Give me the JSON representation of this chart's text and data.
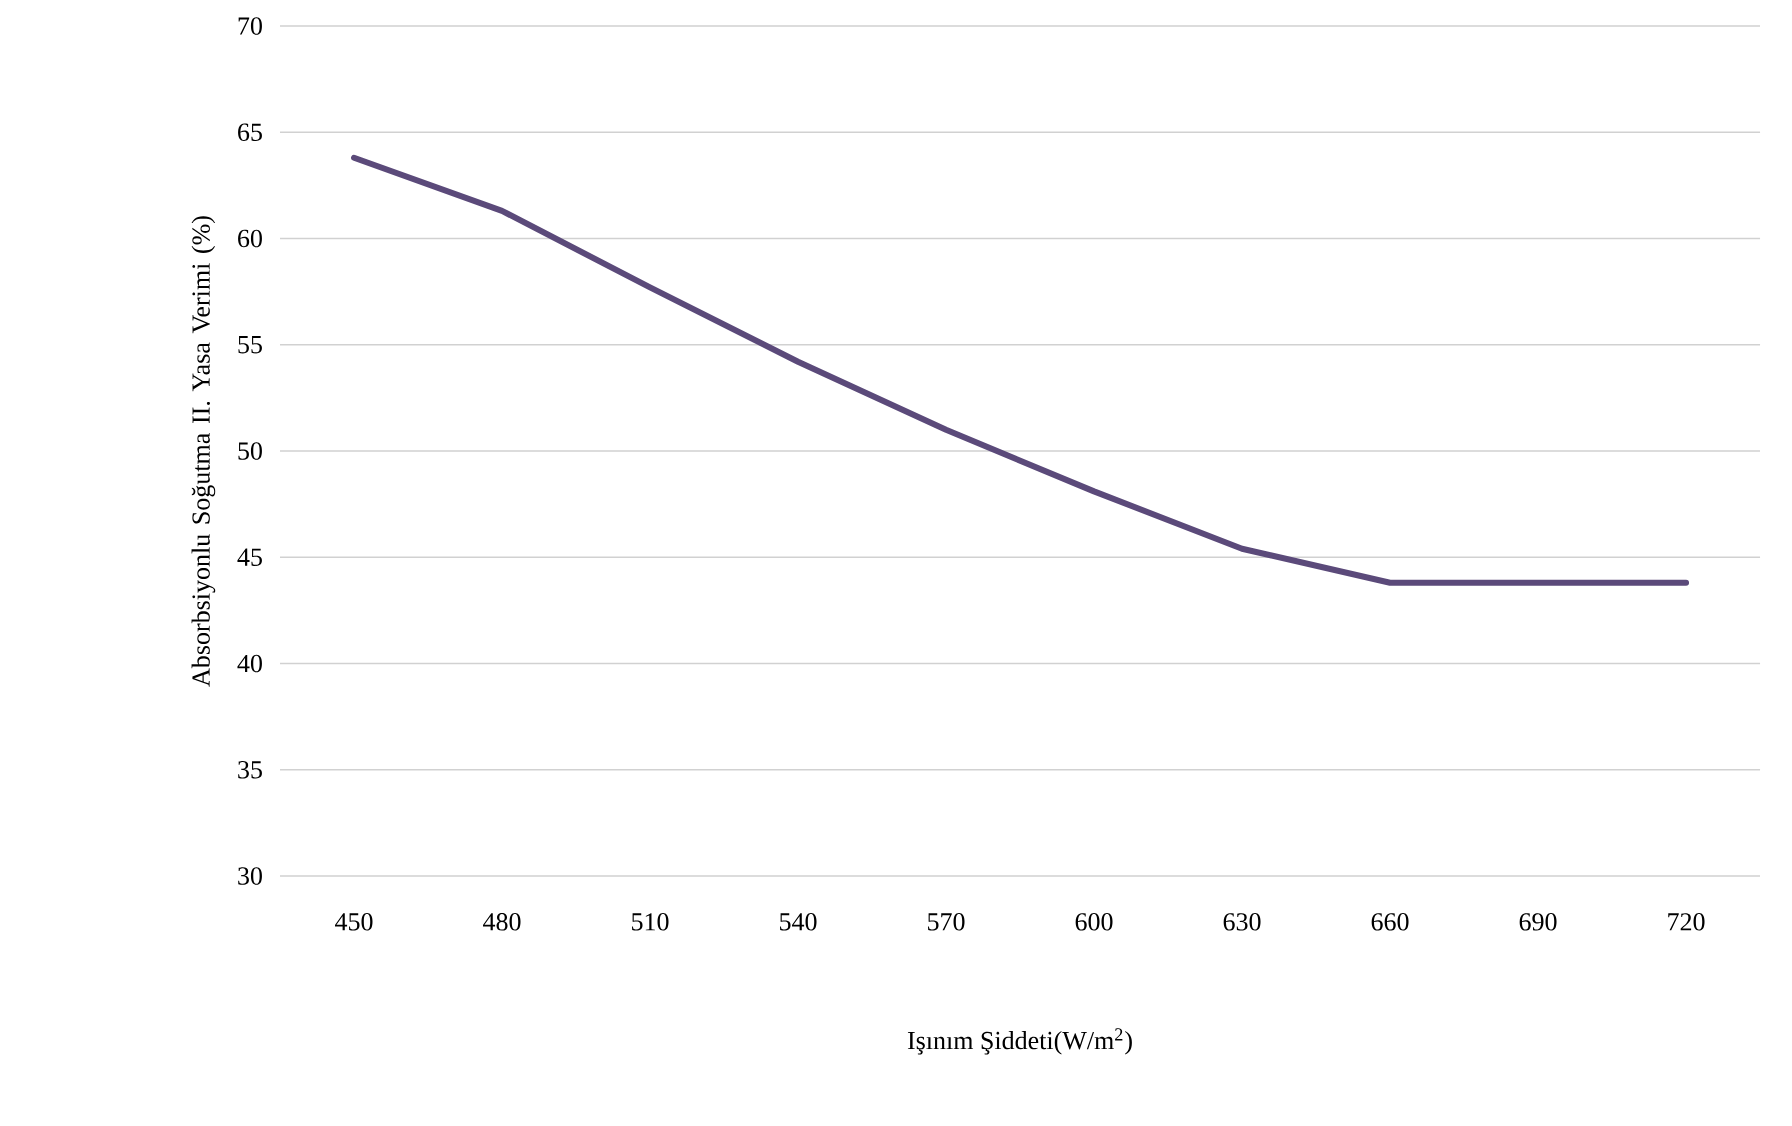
{
  "chart_data": {
    "type": "line",
    "xlabel": "Işınım Şiddeti(W/m$^{2}$)",
    "ylabel": "Absorbsiyonlu Soğutma II. Yasa Verimi (%)",
    "categories": [
      "450",
      "480",
      "510",
      "540",
      "570",
      "600",
      "630",
      "660",
      "690",
      "720"
    ],
    "series": [
      {
        "color": "#5b4a7a",
        "values": [
          63.8,
          61.3,
          57.7,
          54.2,
          51.0,
          48.1,
          45.4,
          43.8,
          43.8,
          43.8
        ]
      }
    ],
    "ylim": [
      30,
      70
    ],
    "yticks": [
      30,
      35,
      40,
      45,
      50,
      55,
      60,
      65,
      70
    ],
    "grid": "y"
  }
}
